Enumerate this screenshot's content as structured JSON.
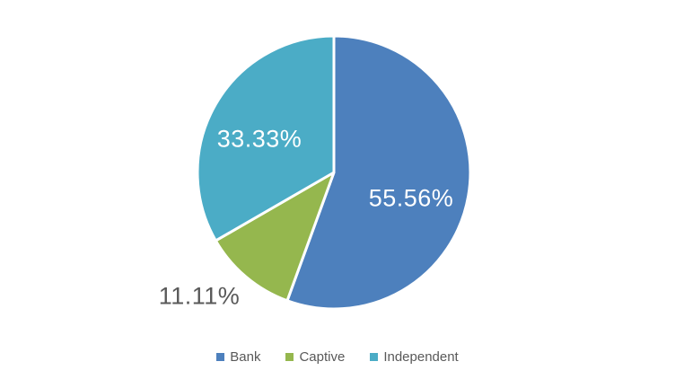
{
  "chart_data": {
    "type": "pie",
    "title": "",
    "categories": [
      "Bank",
      "Captive",
      "Independent"
    ],
    "values": [
      55.56,
      11.11,
      33.33
    ],
    "data_labels": {
      "bank": "55.56%",
      "captive": "11.11%",
      "independent": "33.33%"
    },
    "colors": [
      "#4D80BD",
      "#95B74E",
      "#4BACC6"
    ],
    "start_angle_deg": 0,
    "direction": "clockwise",
    "separator_color": "#FFFFFF",
    "label_inside_color": "#FFFFFF",
    "label_outside_color": "#595959",
    "legend_position": "bottom",
    "legend": [
      {
        "label": "Bank",
        "color": "#4D80BD"
      },
      {
        "label": "Captive",
        "color": "#95B74E"
      },
      {
        "label": "Independent",
        "color": "#4BACC6"
      }
    ]
  }
}
